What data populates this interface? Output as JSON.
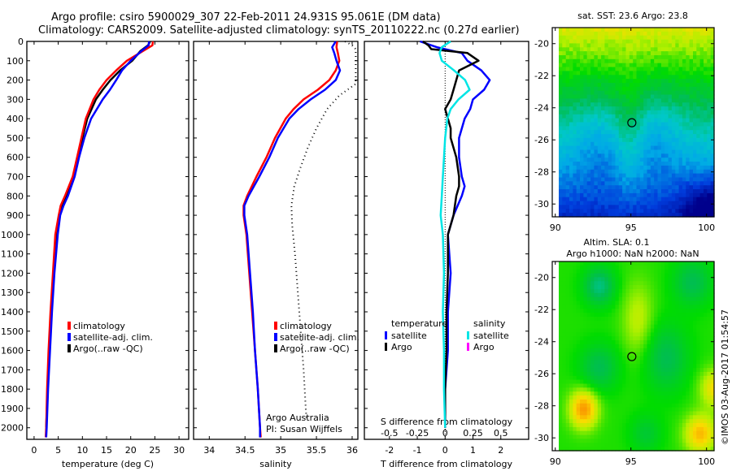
{
  "title": {
    "line1": "Argo profile: csiro 5900029_307 22-Feb-2011 24.931S 95.061E (DM data)",
    "line2": "Climatology: CARS2009. Satellite-adjusted climatology: synTS_20110222.nc (0.27d earlier)"
  },
  "colors": {
    "climatology": "#ff0000",
    "satellite": "#0000ff",
    "argo": "#000000",
    "sal_satellite": "#00e5e5",
    "sal_argo": "#ff00ff"
  },
  "credits": {
    "line1": "Argo Australia",
    "line2": "PI: Susan Wijffels"
  },
  "timestamp": "©IMOS 03-Aug-2017 01:54:57",
  "chart_data": [
    {
      "type": "line",
      "name": "temperature-profile",
      "xlabel": "temperature (deg C)",
      "ylabel": "",
      "xlim": [
        -1.5,
        32
      ],
      "ylim": [
        2060,
        0
      ],
      "xticks": [
        0,
        5,
        10,
        15,
        20,
        25,
        30
      ],
      "yticks": [
        0,
        100,
        200,
        300,
        400,
        500,
        600,
        700,
        800,
        900,
        1000,
        1100,
        1200,
        1300,
        1400,
        1500,
        1600,
        1700,
        1800,
        1900,
        2000
      ],
      "legend": {
        "position": "center-left",
        "entries": [
          "climatology",
          "satellite-adj. clim.",
          "Argo(..raw -QC)"
        ]
      },
      "series": [
        {
          "name": "climatology",
          "color": "#ff0000",
          "depth": [
            0,
            20,
            50,
            100,
            150,
            200,
            250,
            300,
            400,
            500,
            600,
            700,
            800,
            850,
            900,
            1000,
            1200,
            1400,
            1600,
            1800,
            2000,
            2050
          ],
          "values": [
            24.6,
            24.5,
            22.5,
            19.2,
            17.0,
            15.0,
            13.5,
            12.3,
            10.7,
            9.8,
            8.9,
            8.0,
            6.4,
            5.5,
            5.1,
            4.4,
            3.9,
            3.4,
            3.0,
            2.7,
            2.5,
            2.4
          ]
        },
        {
          "name": "satellite-adj. clim.",
          "color": "#0000ff",
          "depth": [
            0,
            20,
            50,
            100,
            150,
            200,
            250,
            300,
            400,
            500,
            600,
            700,
            800,
            850,
            900,
            1000,
            1200,
            1400,
            1600,
            1800,
            2000,
            2050
          ],
          "values": [
            23.8,
            23.7,
            22.2,
            20.0,
            18.2,
            17.0,
            15.7,
            14.2,
            11.8,
            10.4,
            9.3,
            8.4,
            7.0,
            6.1,
            5.4,
            4.9,
            4.2,
            3.7,
            3.3,
            2.9,
            2.6,
            2.5
          ]
        },
        {
          "name": "Argo(..raw -QC)",
          "color": "#000000",
          "depth": [
            0,
            20,
            50,
            100,
            150,
            200,
            250,
            300,
            400,
            500,
            600,
            700,
            800,
            850,
            900,
            1000,
            1200,
            1400,
            1600,
            1800,
            2000
          ],
          "values": [
            24.0,
            23.6,
            22.0,
            20.3,
            17.8,
            15.8,
            14.2,
            12.8,
            11.0,
            10.0,
            9.2,
            8.3,
            6.8,
            5.9,
            5.3,
            4.7,
            4.0,
            3.5,
            3.1,
            2.8,
            2.5
          ]
        }
      ]
    },
    {
      "type": "line",
      "name": "salinity-profile",
      "xlabel": "salinity",
      "xlim": [
        33.78,
        36.08
      ],
      "ylim": [
        2060,
        0
      ],
      "xticks": [
        34,
        34.5,
        35,
        35.5,
        36
      ],
      "legend": {
        "position": "center-right",
        "entries": [
          "climatology",
          "satellite-adj. clim.",
          "Argo(..raw -QC)"
        ]
      },
      "series": [
        {
          "name": "climatology",
          "color": "#ff0000",
          "depth": [
            0,
            30,
            60,
            100,
            150,
            200,
            250,
            300,
            350,
            400,
            500,
            600,
            700,
            800,
            850,
            900,
            1000,
            1200,
            1400,
            1600,
            1800,
            2000,
            2050
          ],
          "values": [
            35.79,
            35.78,
            35.8,
            35.82,
            35.77,
            35.68,
            35.52,
            35.32,
            35.18,
            35.07,
            34.92,
            34.8,
            34.66,
            34.53,
            34.48,
            34.48,
            34.52,
            34.56,
            34.6,
            34.64,
            34.68,
            34.71,
            34.72
          ]
        },
        {
          "name": "satellite-adj. clim.",
          "color": "#0000ff",
          "depth": [
            0,
            30,
            60,
            100,
            150,
            200,
            250,
            300,
            350,
            400,
            500,
            600,
            700,
            800,
            850,
            900,
            1000,
            1200,
            1400,
            1600,
            1800,
            2000,
            2050
          ],
          "values": [
            35.77,
            35.72,
            35.75,
            35.78,
            35.83,
            35.77,
            35.62,
            35.42,
            35.25,
            35.12,
            34.96,
            34.84,
            34.7,
            34.55,
            34.49,
            34.49,
            34.53,
            34.57,
            34.61,
            34.64,
            34.68,
            34.71,
            34.71
          ]
        },
        {
          "name": "Argo(..raw -QC) (dotted)",
          "color": "#000000",
          "depth": [
            0,
            20,
            40,
            220,
            280,
            350,
            450,
            550,
            650,
            750,
            850,
            950,
            1100,
            1300,
            1500,
            1700,
            1900,
            1950
          ],
          "values": [
            35.9,
            36.0,
            36.05,
            36.05,
            35.82,
            35.65,
            35.5,
            35.38,
            35.28,
            35.19,
            35.15,
            35.16,
            35.2,
            35.24,
            35.28,
            35.32,
            35.35,
            35.36
          ]
        }
      ]
    },
    {
      "type": "line",
      "name": "difference-from-climatology",
      "xlabel": "T difference from climatology",
      "x2label": "S difference from climatology",
      "xlim": [
        -2.9,
        3.0
      ],
      "x2lim": [
        -0.725,
        0.75
      ],
      "ylim": [
        2060,
        0
      ],
      "xticks": [
        -2,
        -1,
        0,
        1,
        2
      ],
      "x2ticks": [
        -0.5,
        -0.25,
        0,
        0.25,
        0.5
      ],
      "x2tick_labels": [
        "-0.5",
        "-0.25",
        "0",
        "0.25",
        "0.5"
      ],
      "legend": {
        "position": "center",
        "groups": [
          {
            "title": "temperature",
            "entries": [
              "satellite",
              "Argo"
            ]
          },
          {
            "title": "salinity",
            "entries": [
              "satellite",
              "Argo"
            ]
          }
        ]
      },
      "series": [
        {
          "name": "temperature satellite",
          "color": "#0000ff",
          "axis": "T",
          "depth": [
            0,
            30,
            60,
            100,
            150,
            200,
            250,
            300,
            350,
            400,
            500,
            600,
            700,
            750,
            800,
            900,
            1000,
            1200,
            1400,
            1600,
            1800,
            2000
          ],
          "values": [
            -0.9,
            -0.3,
            0.6,
            0.8,
            1.3,
            1.6,
            1.4,
            1.0,
            0.9,
            0.7,
            0.5,
            0.5,
            0.6,
            0.7,
            0.6,
            0.3,
            0.1,
            0.2,
            0.1,
            0.1,
            0.0,
            0.0
          ]
        },
        {
          "name": "temperature Argo",
          "color": "#000000",
          "axis": "T",
          "depth": [
            0,
            20,
            40,
            60,
            100,
            150,
            200,
            250,
            300,
            350,
            400,
            450,
            500,
            600,
            700,
            750,
            800,
            900,
            1000,
            1200,
            1400,
            1600,
            1800,
            2000
          ],
          "values": [
            -0.8,
            -0.6,
            -0.5,
            0.8,
            1.2,
            0.5,
            0.4,
            0.3,
            0.2,
            0.0,
            0.1,
            0.2,
            0.2,
            0.4,
            0.5,
            0.5,
            0.4,
            0.3,
            0.1,
            0.1,
            0.05,
            0.05,
            0.0,
            0.0
          ]
        },
        {
          "name": "salinity satellite",
          "color": "#00e5e5",
          "axis": "S",
          "depth": [
            0,
            30,
            60,
            100,
            150,
            200,
            250,
            300,
            350,
            400,
            500,
            600,
            700,
            800,
            900,
            1000,
            1200,
            1400,
            1600,
            1800,
            2000
          ],
          "values": [
            0.05,
            -0.03,
            -0.05,
            -0.03,
            0.08,
            0.18,
            0.22,
            0.12,
            0.05,
            0.02,
            0.0,
            -0.01,
            -0.02,
            -0.03,
            -0.04,
            -0.02,
            -0.01,
            -0.02,
            -0.01,
            -0.01,
            0.0
          ]
        },
        {
          "name": "salinity Argo",
          "color": "#ff00ff",
          "axis": "S",
          "depth": [],
          "values": []
        }
      ]
    },
    {
      "type": "heatmap",
      "name": "sst-map",
      "title": "sat. SST: 23.6 Argo: 23.8",
      "xlim": [
        89.8,
        100.5
      ],
      "ylim": [
        -30.8,
        -19.0
      ],
      "xticks": [
        90,
        95,
        100
      ],
      "yticks": [
        -20,
        -22,
        -24,
        -26,
        -28,
        -30
      ],
      "marker": {
        "lon": 95.061,
        "lat": -24.931
      }
    },
    {
      "type": "heatmap",
      "name": "sla-map",
      "title": "Altim. SLA: 0.1",
      "subtitle": "Argo h1000: NaN h2000: NaN",
      "xlim": [
        89.8,
        100.5
      ],
      "ylim": [
        -30.8,
        -19.0
      ],
      "xticks": [
        90,
        95,
        100
      ],
      "yticks": [
        -20,
        -22,
        -24,
        -26,
        -28,
        -30
      ],
      "marker": {
        "lon": 95.061,
        "lat": -24.931
      }
    }
  ]
}
